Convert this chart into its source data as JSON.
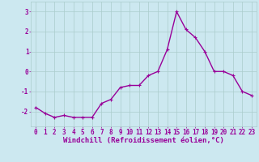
{
  "x": [
    0,
    1,
    2,
    3,
    4,
    5,
    6,
    7,
    8,
    9,
    10,
    11,
    12,
    13,
    14,
    15,
    16,
    17,
    18,
    19,
    20,
    21,
    22,
    23
  ],
  "y": [
    -1.8,
    -2.1,
    -2.3,
    -2.2,
    -2.3,
    -2.3,
    -2.3,
    -1.6,
    -1.4,
    -0.8,
    -0.7,
    -0.7,
    -0.2,
    0.0,
    1.1,
    3.0,
    2.1,
    1.7,
    1.0,
    0.0,
    0.0,
    -0.2,
    -1.0,
    -1.2
  ],
  "line_color": "#990099",
  "marker": "+",
  "markersize": 3,
  "linewidth": 1.0,
  "background_color": "#cce8f0",
  "grid_color": "#aacccc",
  "xlabel": "Windchill (Refroidissement éolien,°C)",
  "xlabel_color": "#990099",
  "xlabel_fontsize": 6.5,
  "tick_color": "#990099",
  "tick_fontsize": 5.5,
  "ylabel_ticks": [
    -2,
    -1,
    0,
    1,
    2,
    3
  ],
  "ylim": [
    -2.75,
    3.5
  ],
  "xlim": [
    -0.5,
    23.5
  ],
  "xticks": [
    0,
    1,
    2,
    3,
    4,
    5,
    6,
    7,
    8,
    9,
    10,
    11,
    12,
    13,
    14,
    15,
    16,
    17,
    18,
    19,
    20,
    21,
    22,
    23
  ]
}
